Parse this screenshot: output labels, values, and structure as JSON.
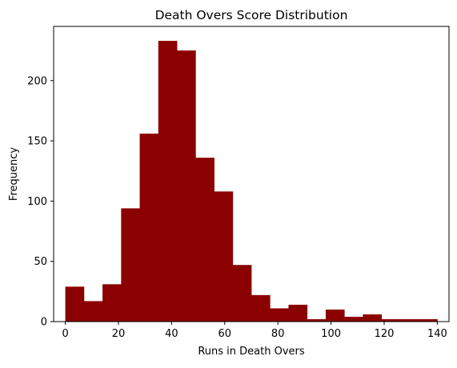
{
  "chart_data": {
    "type": "bar",
    "subtype": "histogram",
    "title": "Death Overs Score Distribution",
    "xlabel": "Runs in Death Overs",
    "ylabel": "Frequency",
    "bin_edges": [
      0,
      7,
      14,
      21,
      28,
      35,
      42,
      49,
      56,
      63,
      70,
      77,
      84,
      91,
      98,
      105,
      112,
      119,
      126,
      133,
      140
    ],
    "values": [
      29,
      17,
      31,
      94,
      156,
      233,
      225,
      136,
      108,
      47,
      22,
      11,
      14,
      2,
      10,
      4,
      6,
      2,
      2,
      2
    ],
    "xlim": [
      -4.4,
      144.4
    ],
    "ylim": [
      0,
      245
    ],
    "xticks": [
      0,
      20,
      40,
      60,
      80,
      100,
      120,
      140
    ],
    "yticks": [
      0,
      50,
      100,
      150,
      200
    ],
    "bar_color": "#8b0000",
    "grid": false,
    "legend": "none"
  }
}
